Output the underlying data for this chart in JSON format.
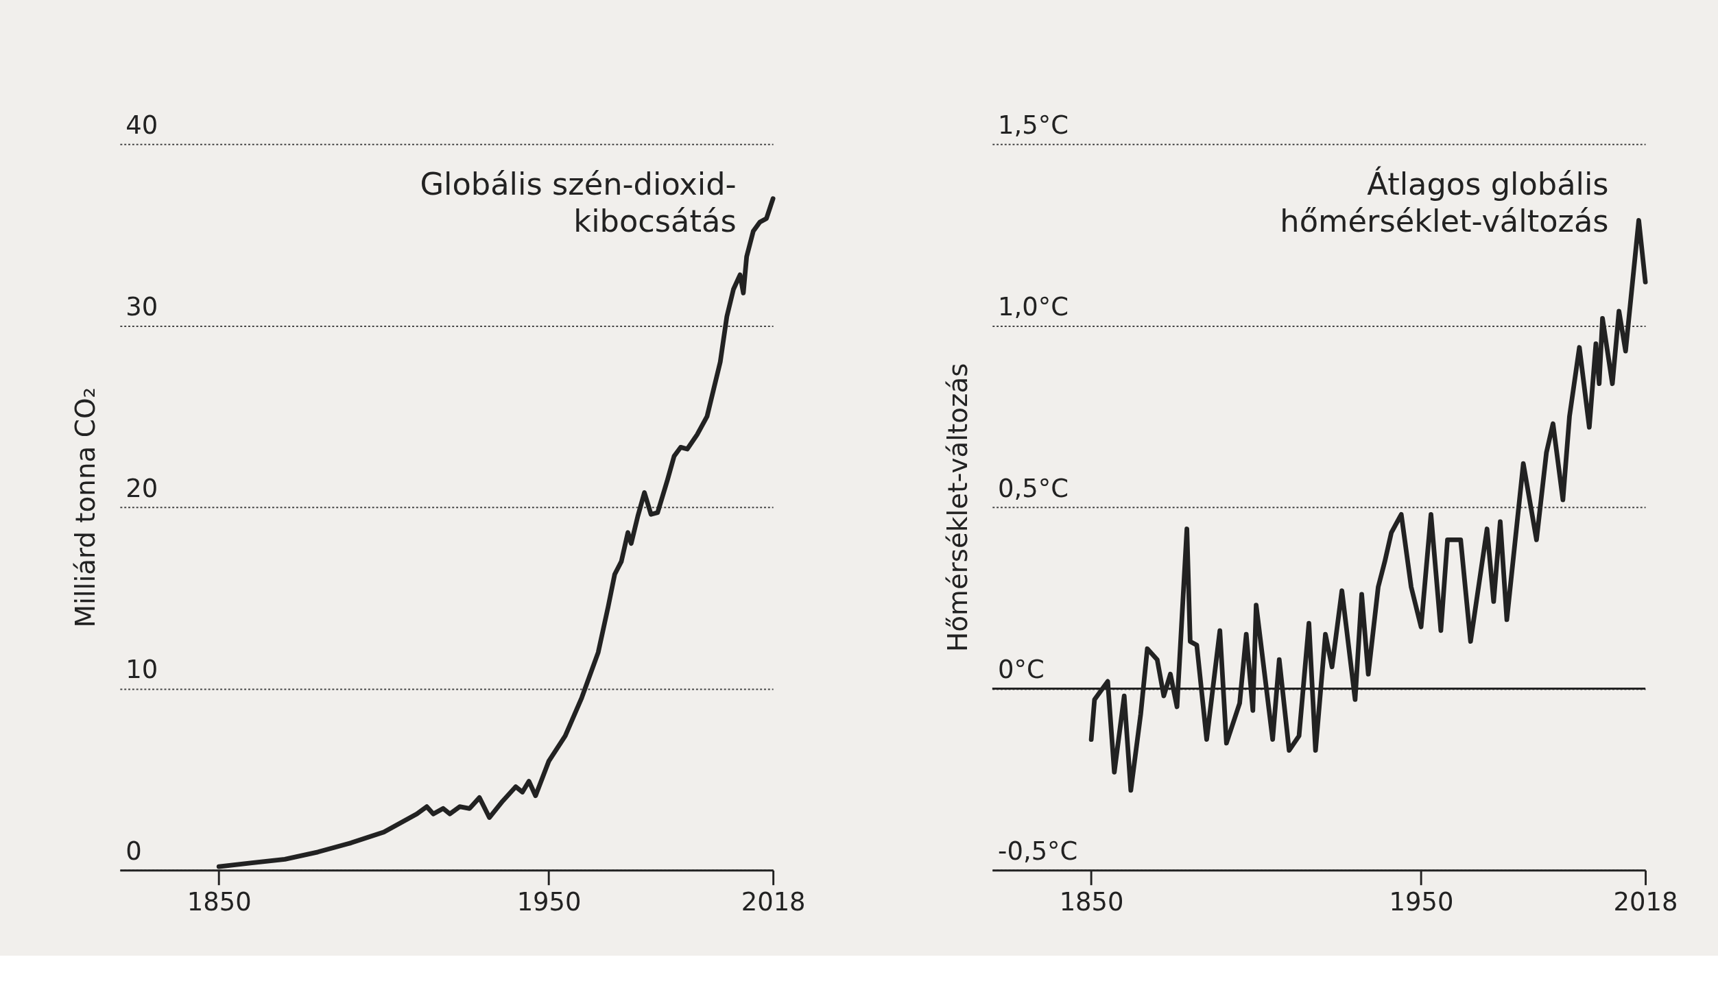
{
  "chart_data": [
    {
      "type": "line",
      "ylabel": "Milliárd tonna CO₂",
      "xlim": [
        1820,
        2018
      ],
      "xticks": [
        1850,
        1950,
        2018
      ],
      "ylim": [
        0,
        40
      ],
      "yticks": [
        0,
        10,
        20,
        30,
        40
      ],
      "grid": "y",
      "series": [
        {
          "name": "Globális szén-dioxid-kibocsátás",
          "color": "#222222",
          "x": [
            1850,
            1860,
            1870,
            1880,
            1890,
            1900,
            1905,
            1910,
            1913,
            1915,
            1918,
            1920,
            1923,
            1926,
            1929,
            1932,
            1936,
            1940,
            1942,
            1944,
            1946,
            1950,
            1955,
            1960,
            1965,
            1968,
            1970,
            1972,
            1974,
            1975,
            1977,
            1979,
            1981,
            1983,
            1986,
            1988,
            1990,
            1992,
            1995,
            1998,
            2000,
            2002,
            2004,
            2006,
            2008,
            2009,
            2010,
            2012,
            2014,
            2016,
            2018
          ],
          "values": [
            0.2,
            0.4,
            0.6,
            1.0,
            1.5,
            2.1,
            2.6,
            3.1,
            3.5,
            3.1,
            3.4,
            3.1,
            3.5,
            3.4,
            4.0,
            2.9,
            3.8,
            4.6,
            4.3,
            4.9,
            4.1,
            6.0,
            7.4,
            9.5,
            12.0,
            14.5,
            16.3,
            17.0,
            18.6,
            18.0,
            19.5,
            20.8,
            19.6,
            19.7,
            21.5,
            22.8,
            23.3,
            23.2,
            24.0,
            25.0,
            26.5,
            28.0,
            30.5,
            32.0,
            32.8,
            31.8,
            33.8,
            35.2,
            35.7,
            35.9,
            37.0
          ]
        }
      ]
    },
    {
      "type": "line",
      "ylabel": "Hőmérséklet-változás",
      "xlim": [
        1820,
        2018
      ],
      "xticks": [
        1850,
        1950,
        2018
      ],
      "ylim": [
        -0.5,
        1.5
      ],
      "yticks": [
        {
          "value": -0.5,
          "label": "-0,5°C"
        },
        {
          "value": 0,
          "label": "0°C"
        },
        {
          "value": 0.5,
          "label": "0,5°C"
        },
        {
          "value": 1.0,
          "label": "1,0°C"
        },
        {
          "value": 1.5,
          "label": "1,5°C"
        }
      ],
      "grid": "y",
      "ref_lines": [
        {
          "axis": "y",
          "value": 0,
          "color": "#222222",
          "line_style": "solid"
        }
      ],
      "series": [
        {
          "name": "Átlagos globális hőmérséklet-változás",
          "color": "#222222",
          "x": [
            1850,
            1851,
            1855,
            1857,
            1860,
            1862,
            1865,
            1867,
            1870,
            1872,
            1874,
            1876,
            1879,
            1880,
            1882,
            1885,
            1889,
            1891,
            1895,
            1897,
            1899,
            1900,
            1905,
            1907,
            1910,
            1913,
            1916,
            1918,
            1921,
            1923,
            1926,
            1930,
            1932,
            1934,
            1937,
            1939,
            1941,
            1944,
            1947,
            1950,
            1953,
            1956,
            1958,
            1962,
            1965,
            1970,
            1972,
            1974,
            1976,
            1981,
            1985,
            1988,
            1990,
            1993,
            1995,
            1998,
            2001,
            2003,
            2004,
            2005,
            2008,
            2010,
            2012,
            2016,
            2018
          ],
          "values": [
            -0.14,
            -0.03,
            0.02,
            -0.23,
            -0.02,
            -0.28,
            -0.07,
            0.11,
            0.08,
            -0.02,
            0.04,
            -0.05,
            0.44,
            0.13,
            0.12,
            -0.14,
            0.16,
            -0.15,
            -0.04,
            0.15,
            -0.06,
            0.23,
            -0.14,
            0.08,
            -0.17,
            -0.13,
            0.18,
            -0.17,
            0.15,
            0.06,
            0.27,
            -0.03,
            0.26,
            0.04,
            0.28,
            0.35,
            0.43,
            0.48,
            0.28,
            0.17,
            0.48,
            0.16,
            0.41,
            0.41,
            0.13,
            0.44,
            0.24,
            0.46,
            0.19,
            0.62,
            0.41,
            0.65,
            0.73,
            0.52,
            0.75,
            0.94,
            0.72,
            0.95,
            0.84,
            1.02,
            0.84,
            1.04,
            0.93,
            1.29,
            1.12
          ]
        }
      ]
    }
  ]
}
